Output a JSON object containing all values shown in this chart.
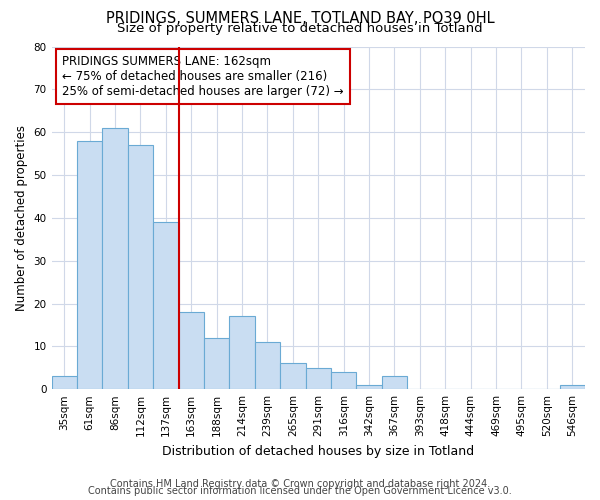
{
  "title": "PRIDINGS, SUMMERS LANE, TOTLAND BAY, PO39 0HL",
  "subtitle": "Size of property relative to detached houses in Totland",
  "xlabel": "Distribution of detached houses by size in Totland",
  "ylabel": "Number of detached properties",
  "categories": [
    "35sqm",
    "61sqm",
    "86sqm",
    "112sqm",
    "137sqm",
    "163sqm",
    "188sqm",
    "214sqm",
    "239sqm",
    "265sqm",
    "291sqm",
    "316sqm",
    "342sqm",
    "367sqm",
    "393sqm",
    "418sqm",
    "444sqm",
    "469sqm",
    "495sqm",
    "520sqm",
    "546sqm"
  ],
  "values": [
    3,
    58,
    61,
    57,
    39,
    18,
    12,
    17,
    11,
    6,
    5,
    4,
    1,
    3,
    0,
    0,
    0,
    0,
    0,
    0,
    1
  ],
  "bar_color": "#c9ddf2",
  "bar_edge_color": "#6aaad4",
  "highlight_index": 5,
  "highlight_line_color": "#cc0000",
  "annotation_text": "PRIDINGS SUMMERS LANE: 162sqm\n← 75% of detached houses are smaller (216)\n25% of semi-detached houses are larger (72) →",
  "annotation_box_color": "#ffffff",
  "annotation_box_edge_color": "#cc0000",
  "ylim": [
    0,
    80
  ],
  "yticks": [
    0,
    10,
    20,
    30,
    40,
    50,
    60,
    70,
    80
  ],
  "plot_bg_color": "#ffffff",
  "fig_bg_color": "#ffffff",
  "grid_color": "#d0d8e8",
  "footer_line1": "Contains HM Land Registry data © Crown copyright and database right 2024.",
  "footer_line2": "Contains public sector information licensed under the Open Government Licence v3.0.",
  "title_fontsize": 10.5,
  "subtitle_fontsize": 9.5,
  "xlabel_fontsize": 9,
  "ylabel_fontsize": 8.5,
  "tick_fontsize": 7.5,
  "annotation_fontsize": 8.5,
  "footer_fontsize": 7
}
